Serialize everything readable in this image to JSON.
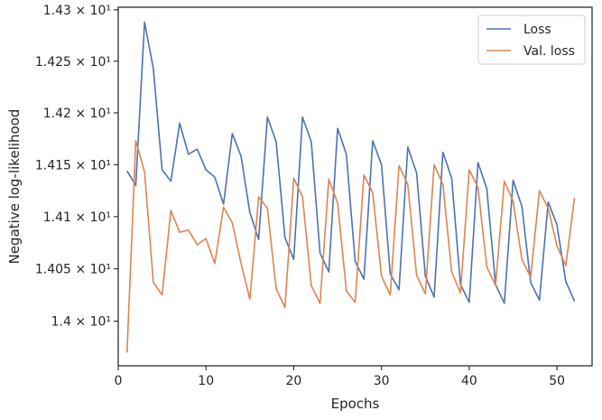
{
  "chart_data": {
    "type": "line",
    "xlabel": "Epochs",
    "ylabel": "Negative log-likelihood",
    "xlim": [
      0,
      54
    ],
    "ylim": [
      13.9575,
      14.3025
    ],
    "yscale": "log",
    "grid": false,
    "legend_position": "top-right",
    "x_ticks": [
      0,
      10,
      20,
      30,
      40,
      50
    ],
    "x_tick_labels": [
      "0",
      "10",
      "20",
      "30",
      "40",
      "50"
    ],
    "y_ticks": [
      14.0,
      14.05,
      14.1,
      14.15,
      14.2,
      14.25,
      14.3
    ],
    "y_tick_labels": [
      "1.4 × 10¹",
      "1.405 × 10¹",
      "1.41 × 10¹",
      "1.415 × 10¹",
      "1.42 × 10¹",
      "1.425 × 10¹",
      "1.43 × 10¹"
    ],
    "x": [
      1,
      2,
      3,
      4,
      5,
      6,
      7,
      8,
      9,
      10,
      11,
      12,
      13,
      14,
      15,
      16,
      17,
      18,
      19,
      20,
      21,
      22,
      23,
      24,
      25,
      26,
      27,
      28,
      29,
      30,
      31,
      32,
      33,
      34,
      35,
      36,
      37,
      38,
      39,
      40,
      41,
      42,
      43,
      44,
      45,
      46,
      47,
      48,
      49,
      50,
      51,
      52
    ],
    "series": [
      {
        "name": "Loss",
        "color": "#4c72b0",
        "values": [
          14.144,
          14.13,
          14.288,
          14.243,
          14.145,
          14.134,
          14.19,
          14.16,
          14.165,
          14.145,
          14.138,
          14.112,
          14.18,
          14.158,
          14.104,
          14.078,
          14.196,
          14.172,
          14.08,
          14.059,
          14.196,
          14.172,
          14.065,
          14.047,
          14.185,
          14.16,
          14.057,
          14.04,
          14.173,
          14.15,
          14.045,
          14.03,
          14.167,
          14.142,
          14.043,
          14.023,
          14.162,
          14.137,
          14.035,
          14.018,
          14.152,
          14.127,
          14.035,
          14.017,
          14.135,
          14.11,
          14.037,
          14.02,
          14.114,
          14.092,
          14.038,
          14.019
        ]
      },
      {
        "name": "Val. loss",
        "color": "#dd8452",
        "values": [
          13.97,
          14.173,
          14.143,
          14.037,
          14.025,
          14.106,
          14.085,
          14.087,
          14.073,
          14.079,
          14.055,
          14.109,
          14.094,
          14.055,
          14.021,
          14.119,
          14.108,
          14.031,
          14.013,
          14.137,
          14.119,
          14.034,
          14.017,
          14.136,
          14.113,
          14.029,
          14.018,
          14.14,
          14.123,
          14.043,
          14.025,
          14.149,
          14.131,
          14.044,
          14.026,
          14.15,
          14.131,
          14.047,
          14.027,
          14.145,
          14.128,
          14.052,
          14.034,
          14.134,
          14.115,
          14.059,
          14.042,
          14.125,
          14.108,
          14.072,
          14.053,
          14.118
        ]
      }
    ]
  }
}
